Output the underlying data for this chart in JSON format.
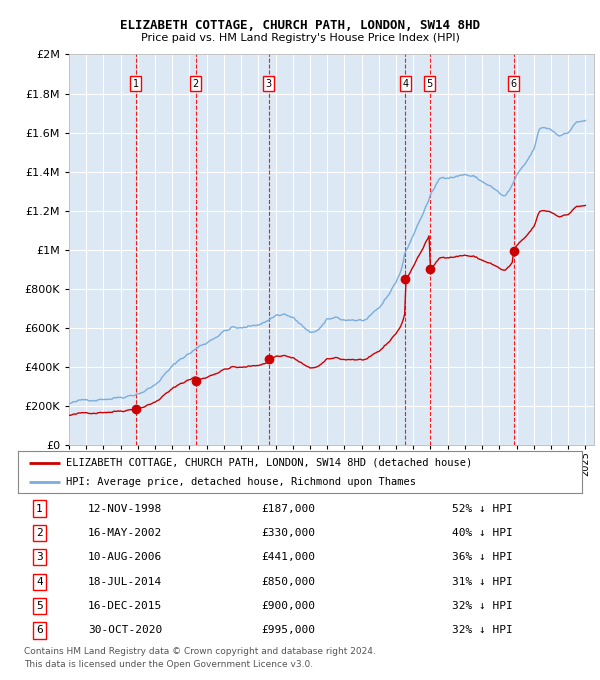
{
  "title": "ELIZABETH COTTAGE, CHURCH PATH, LONDON, SW14 8HD",
  "subtitle": "Price paid vs. HM Land Registry's House Price Index (HPI)",
  "footer1": "Contains HM Land Registry data © Crown copyright and database right 2024.",
  "footer2": "This data is licensed under the Open Government Licence v3.0.",
  "legend_property": "ELIZABETH COTTAGE, CHURCH PATH, LONDON, SW14 8HD (detached house)",
  "legend_hpi": "HPI: Average price, detached house, Richmond upon Thames",
  "property_color": "#cc0000",
  "hpi_color": "#7aaddb",
  "plot_bg_color": "#dce9f5",
  "grid_color": "#ffffff",
  "sales": [
    {
      "num": 1,
      "date": "12-NOV-1998",
      "price": 187000,
      "pct": "52% ↓ HPI",
      "year": 1998.87
    },
    {
      "num": 2,
      "date": "16-MAY-2002",
      "price": 330000,
      "pct": "40% ↓ HPI",
      "year": 2002.37
    },
    {
      "num": 3,
      "date": "10-AUG-2006",
      "price": 441000,
      "pct": "36% ↓ HPI",
      "year": 2006.61
    },
    {
      "num": 4,
      "date": "18-JUL-2014",
      "price": 850000,
      "pct": "31% ↓ HPI",
      "year": 2014.54
    },
    {
      "num": 5,
      "date": "16-DEC-2015",
      "price": 900000,
      "pct": "32% ↓ HPI",
      "year": 2015.96
    },
    {
      "num": 6,
      "date": "30-OCT-2020",
      "price": 995000,
      "pct": "32% ↓ HPI",
      "year": 2020.83
    }
  ],
  "ylim": [
    0,
    2000000
  ],
  "yticks": [
    0,
    200000,
    400000,
    600000,
    800000,
    1000000,
    1200000,
    1400000,
    1600000,
    1800000,
    2000000
  ],
  "xlim_start": 1995.0,
  "xlim_end": 2025.5,
  "xticks": [
    1995,
    1996,
    1997,
    1998,
    1999,
    2000,
    2001,
    2002,
    2003,
    2004,
    2005,
    2006,
    2007,
    2008,
    2009,
    2010,
    2011,
    2012,
    2013,
    2014,
    2015,
    2016,
    2017,
    2018,
    2019,
    2020,
    2021,
    2022,
    2023,
    2024,
    2025
  ]
}
